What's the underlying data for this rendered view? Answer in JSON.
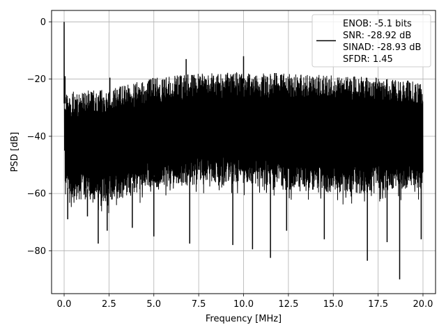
{
  "chart_data": {
    "type": "line",
    "title": "",
    "xlabel": "Frequency [MHz]",
    "ylabel": "PSD [dB]",
    "xlim": [
      -0.7,
      20.7
    ],
    "ylim": [
      -95,
      4
    ],
    "x_ticks": [
      0.0,
      2.5,
      5.0,
      7.5,
      10.0,
      12.5,
      15.0,
      17.5,
      20.0
    ],
    "x_tick_labels": [
      "0.0",
      "2.5",
      "5.0",
      "7.5",
      "10.0",
      "12.5",
      "15.0",
      "17.5",
      "20.0"
    ],
    "y_ticks": [
      0,
      -20,
      -40,
      -60,
      -80
    ],
    "y_tick_labels": [
      "0",
      "−20",
      "−40",
      "−60",
      "−80"
    ],
    "grid": true,
    "legend_position": "top-right",
    "line_color": "#000000",
    "series": [
      {
        "x_range": [
          0,
          20
        ],
        "noise_upper_envelope": {
          "x": [
            0.05,
            2.5,
            5.0,
            7.5,
            10.0,
            12.5,
            15.0,
            17.5,
            20.0
          ],
          "y": [
            -24.5,
            -23.5,
            -19.5,
            -18.0,
            -17.5,
            -18.0,
            -18.5,
            -19.5,
            -21.0
          ]
        },
        "noise_lower_envelope": {
          "x": [
            0.05,
            2.5,
            5.0,
            7.5,
            10.0,
            12.5,
            15.0,
            17.5,
            20.0
          ],
          "y": [
            -62,
            -63,
            -58,
            -57,
            -57,
            -59,
            -60,
            -60,
            -58
          ]
        },
        "peaks": [
          {
            "x": 0.0,
            "y": 0
          },
          {
            "x": 6.8,
            "y": -13
          },
          {
            "x": 10.0,
            "y": -12
          },
          {
            "x": 2.55,
            "y": -19.5
          },
          {
            "x": 0.05,
            "y": -19
          }
        ],
        "dips": [
          {
            "x": 0.2,
            "y": -69
          },
          {
            "x": 1.3,
            "y": -68
          },
          {
            "x": 1.9,
            "y": -77.5
          },
          {
            "x": 2.4,
            "y": -73
          },
          {
            "x": 3.8,
            "y": -72
          },
          {
            "x": 5.0,
            "y": -75
          },
          {
            "x": 7.0,
            "y": -77.5
          },
          {
            "x": 9.4,
            "y": -78
          },
          {
            "x": 10.5,
            "y": -79.5
          },
          {
            "x": 11.5,
            "y": -82.5
          },
          {
            "x": 12.4,
            "y": -73
          },
          {
            "x": 14.5,
            "y": -76
          },
          {
            "x": 16.9,
            "y": -83.5
          },
          {
            "x": 18.0,
            "y": -77
          },
          {
            "x": 18.7,
            "y": -90
          },
          {
            "x": 19.9,
            "y": -76
          }
        ]
      }
    ],
    "legend": {
      "lines": [
        "ENOB: -5.1 bits",
        "SNR: -28.92 dB",
        "SINAD: -28.93 dB",
        "SFDR: 1.45"
      ]
    }
  }
}
